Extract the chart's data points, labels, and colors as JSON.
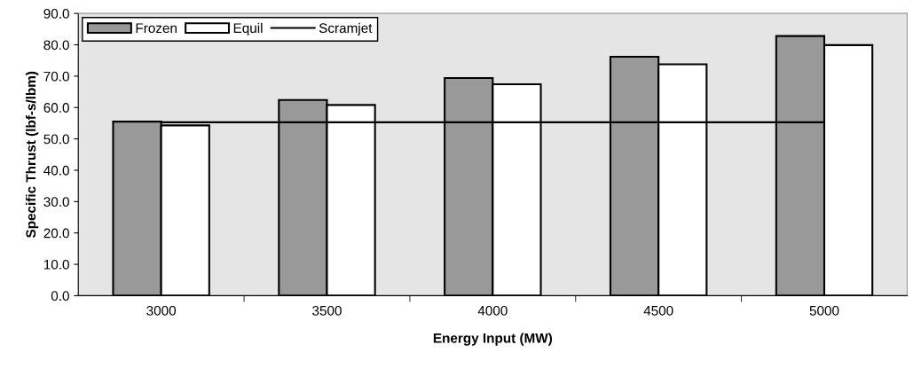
{
  "chart_data": {
    "type": "bar",
    "xlabel": "Energy Input (MW)",
    "ylabel": "Specific Thrust (lbf-s/lbm)",
    "categories": [
      "3000",
      "3500",
      "4000",
      "4500",
      "5000"
    ],
    "series": [
      {
        "name": "Frozen",
        "color": "#999999",
        "values": [
          55.5,
          62.4,
          69.4,
          76.2,
          82.8
        ]
      },
      {
        "name": "Equil",
        "color": "#ffffff",
        "values": [
          54.3,
          60.8,
          67.4,
          73.8,
          79.9
        ]
      },
      {
        "name": "Scramjet",
        "type": "line",
        "color": "#000000",
        "values": [
          55.3,
          55.3,
          55.3,
          55.3,
          55.3
        ]
      }
    ],
    "ylim": [
      0,
      90
    ],
    "yticks": [
      {
        "value": 0,
        "label": "0.0"
      },
      {
        "value": 10,
        "label": "10.0"
      },
      {
        "value": 20,
        "label": "20.0"
      },
      {
        "value": 30,
        "label": "30.0"
      },
      {
        "value": 40,
        "label": "40.0"
      },
      {
        "value": 50,
        "label": "50.0"
      },
      {
        "value": 60,
        "label": "60.0"
      },
      {
        "value": 70,
        "label": "70.0"
      },
      {
        "value": 80,
        "label": "80.0"
      },
      {
        "value": 90,
        "label": "90.0"
      }
    ],
    "grid": false,
    "legend": "top left"
  }
}
